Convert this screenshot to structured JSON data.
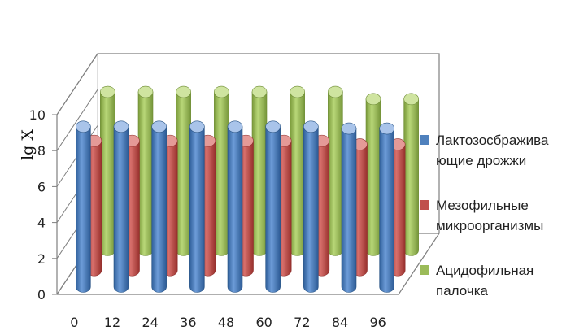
{
  "chart_data": {
    "type": "bar",
    "ylabel": "lg X",
    "xlabel": "",
    "categories": [
      "0",
      "12",
      "24",
      "36",
      "48",
      "60",
      "72",
      "84",
      "96"
    ],
    "ylim": [
      0,
      10
    ],
    "yticks": [
      "0",
      "2",
      "4",
      "6",
      "8",
      "10"
    ],
    "legend_position": "right",
    "series": [
      {
        "name": "Лактозосбраживающие дрожжи",
        "legend_lines": [
          "Лактозосбражива",
          "ющие дрожжи"
        ],
        "color": "#4F81BD",
        "values": [
          8.9,
          8.9,
          8.9,
          8.9,
          8.9,
          8.9,
          8.9,
          8.8,
          8.8
        ]
      },
      {
        "name": "Мезофильные микроорганизмы",
        "legend_lines": [
          "Мезофильные",
          "микроорганизмы"
        ],
        "color": "#C0504D",
        "values": [
          7.2,
          7.2,
          7.2,
          7.2,
          7.2,
          7.2,
          7.2,
          7.0,
          7.0
        ]
      },
      {
        "name": "Ацидофильная палочка",
        "legend_lines": [
          "Ацидофильная",
          "палочка"
        ],
        "color": "#9BBB59",
        "values": [
          8.8,
          8.8,
          8.8,
          8.8,
          8.8,
          8.8,
          8.8,
          8.4,
          8.4
        ]
      }
    ]
  }
}
